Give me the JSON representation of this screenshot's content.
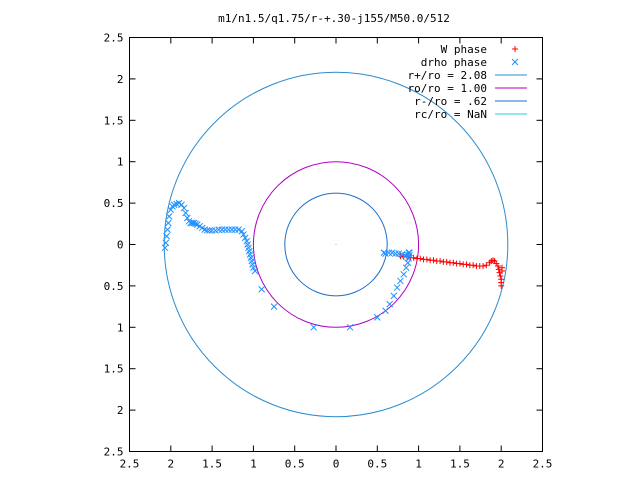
{
  "chart_data": {
    "type": "scatter",
    "title": "m1/n1.5/q1.75/r-+.30-j155/M50.0/512",
    "xlabel": "",
    "ylabel": "",
    "xlim": [
      -2.5,
      2.5
    ],
    "ylim": [
      -2.5,
      2.5
    ],
    "x_ticks": [
      -2.5,
      -2,
      -1.5,
      -1,
      -0.5,
      0,
      0.5,
      1,
      1.5,
      2,
      2.5
    ],
    "y_ticks": [
      -2.5,
      -2,
      -1.5,
      -1,
      -0.5,
      0,
      0.5,
      1,
      1.5,
      2,
      2.5
    ],
    "x_tick_labels": [
      "2.5",
      "2",
      "1.5",
      "1",
      "0.5",
      "0",
      "0.5",
      "1",
      "1.5",
      "2",
      "2.5"
    ],
    "y_tick_labels": [
      "2.5",
      "2",
      "1.5",
      "1",
      "0.5",
      "0",
      "0.5",
      "1",
      "1.5",
      "2",
      "2.5"
    ],
    "grid": false,
    "legend_position": "top-right",
    "series": [
      {
        "name": "W phase",
        "kind": "points",
        "marker": "plus",
        "color": "#ff0000",
        "x": [
          0.78,
          0.82,
          0.86,
          0.9,
          0.94,
          0.98,
          1.02,
          1.06,
          1.1,
          1.14,
          1.18,
          1.22,
          1.26,
          1.3,
          1.34,
          1.38,
          1.42,
          1.46,
          1.5,
          1.54,
          1.58,
          1.62,
          1.66,
          1.7,
          1.74,
          1.78,
          1.82,
          1.86,
          1.88,
          1.9,
          1.92,
          1.94,
          1.96,
          1.97,
          1.98,
          1.99,
          2.0,
          2.0,
          2.0,
          2.01,
          2.01
        ],
        "y": [
          -0.14,
          -0.15,
          -0.15,
          -0.16,
          -0.16,
          -0.17,
          -0.17,
          -0.18,
          -0.18,
          -0.19,
          -0.19,
          -0.2,
          -0.2,
          -0.21,
          -0.21,
          -0.22,
          -0.22,
          -0.23,
          -0.23,
          -0.24,
          -0.24,
          -0.25,
          -0.25,
          -0.26,
          -0.26,
          -0.26,
          -0.25,
          -0.22,
          -0.2,
          -0.19,
          -0.2,
          -0.23,
          -0.26,
          -0.3,
          -0.34,
          -0.38,
          -0.42,
          -0.46,
          -0.5,
          -0.28,
          -0.32
        ]
      },
      {
        "name": "drho phase",
        "kind": "points",
        "marker": "cross",
        "color": "#1e90ff",
        "x": [
          -2.07,
          -2.06,
          -2.05,
          -2.04,
          -2.03,
          -2.02,
          -2.0,
          -1.98,
          -1.96,
          -1.93,
          -1.9,
          -1.87,
          -1.84,
          -1.82,
          -1.8,
          -1.78,
          -1.76,
          -1.74,
          -1.72,
          -1.7,
          -1.68,
          -1.65,
          -1.62,
          -1.59,
          -1.56,
          -1.53,
          -1.5,
          -1.46,
          -1.42,
          -1.38,
          -1.34,
          -1.3,
          -1.26,
          -1.22,
          -1.18,
          -1.14,
          -1.12,
          -1.1,
          -1.08,
          -1.07,
          -1.06,
          -1.05,
          -1.04,
          -1.03,
          -1.02,
          -1.01,
          -1.0,
          -0.98,
          -0.9,
          -0.75,
          -0.27,
          0.17,
          0.5,
          0.6,
          0.65,
          0.7,
          0.74,
          0.78,
          0.82,
          0.85,
          0.87,
          0.88,
          0.89,
          0.89,
          0.88,
          0.86,
          0.84,
          0.8,
          0.76,
          0.72,
          0.68,
          0.64,
          0.6,
          0.58
        ],
        "y": [
          -0.04,
          0.02,
          0.1,
          0.18,
          0.26,
          0.34,
          0.42,
          0.46,
          0.48,
          0.49,
          0.5,
          0.48,
          0.44,
          0.38,
          0.32,
          0.28,
          0.26,
          0.26,
          0.26,
          0.25,
          0.24,
          0.22,
          0.2,
          0.18,
          0.17,
          0.17,
          0.17,
          0.17,
          0.18,
          0.18,
          0.18,
          0.18,
          0.18,
          0.18,
          0.18,
          0.16,
          0.12,
          0.08,
          0.04,
          0.0,
          -0.04,
          -0.08,
          -0.12,
          -0.16,
          -0.2,
          -0.24,
          -0.28,
          -0.32,
          -0.54,
          -0.75,
          -1.0,
          -1.0,
          -0.88,
          -0.8,
          -0.72,
          -0.62,
          -0.52,
          -0.44,
          -0.36,
          -0.28,
          -0.22,
          -0.17,
          -0.13,
          -0.1,
          -0.1,
          -0.12,
          -0.13,
          -0.12,
          -0.11,
          -0.11,
          -0.1,
          -0.1,
          -0.11,
          -0.1
        ]
      },
      {
        "name": "r+/ro = 2.08",
        "kind": "circle",
        "radius": 2.08,
        "color": "#2a8ccf"
      },
      {
        "name": "ro/ro = 1.00",
        "kind": "circle",
        "radius": 1.0,
        "color": "#b000c0"
      },
      {
        "name": "r-/ro = .62",
        "kind": "circle",
        "radius": 0.62,
        "color": "#1a6fcf"
      },
      {
        "name": "rc/ro = NaN",
        "kind": "circle",
        "radius": null,
        "color": "#30c8d8"
      }
    ]
  }
}
